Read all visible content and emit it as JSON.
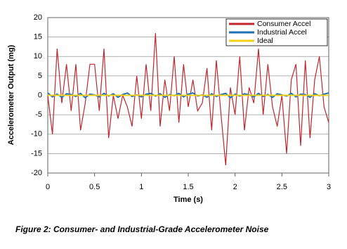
{
  "chart_data": {
    "type": "line",
    "caption": "Figure 2: Consumer- and Industrial-Grade Accelerometer Noise",
    "x_label": "Time (s)",
    "y_label": "Accelerometer Output (mg)",
    "x": [
      0,
      0.05,
      0.1,
      0.15,
      0.2,
      0.25,
      0.3,
      0.35,
      0.4,
      0.45,
      0.5,
      0.55,
      0.6,
      0.65,
      0.7,
      0.75,
      0.8,
      0.85,
      0.9,
      0.95,
      1,
      1.05,
      1.1,
      1.15,
      1.2,
      1.25,
      1.3,
      1.35,
      1.4,
      1.45,
      1.5,
      1.55,
      1.6,
      1.65,
      1.7,
      1.75,
      1.8,
      1.85,
      1.9,
      1.95,
      2,
      2.05,
      2.1,
      2.15,
      2.2,
      2.25,
      2.3,
      2.35,
      2.4,
      2.45,
      2.5,
      2.55,
      2.6,
      2.65,
      2.7,
      2.75,
      2.8,
      2.85,
      2.9,
      2.95,
      3
    ],
    "series": [
      {
        "name": "Consumer Accel",
        "color": "#c0272d",
        "values": [
          0,
          -10,
          12,
          -2,
          8,
          -4,
          8,
          -9,
          -2,
          8,
          8,
          -4,
          12,
          -11,
          0,
          -6,
          0,
          -3,
          -8,
          5,
          -6,
          8,
          -4,
          16,
          -8,
          4,
          -4,
          10,
          -7,
          8,
          -3,
          4,
          -4,
          -2,
          7,
          -9,
          9,
          -5,
          -18,
          2,
          -5,
          10,
          -9,
          2,
          -2,
          12,
          -5,
          8,
          -3,
          -8,
          0,
          -15,
          4,
          8,
          -13,
          9,
          -11,
          4,
          10,
          -3,
          -7
        ]
      },
      {
        "name": "Industrial Accel",
        "color": "#1f6fb4",
        "values": [
          0.6,
          -0.4,
          0.3,
          -0.5,
          0.4,
          0.2,
          -0.3,
          0.5,
          -0.6,
          0.3,
          0.1,
          -0.4,
          0.5,
          -0.2,
          0.4,
          -0.5,
          0.2,
          0.6,
          -0.3,
          0.1,
          -0.4,
          0.3,
          0.5,
          -0.2,
          0.4,
          -0.5,
          0.2,
          -0.1,
          0.5,
          -0.4,
          0.3,
          0.6,
          -0.2,
          0.1,
          -0.5,
          0.4,
          -0.3,
          0.2,
          0.5,
          -0.6,
          0.3,
          -0.2,
          0.4,
          0.1,
          -0.4,
          0.5,
          -0.3,
          0.2,
          -0.5,
          0.4,
          0.1,
          -0.2,
          0.5,
          -0.4,
          0.3,
          0.2,
          -0.5,
          0.4,
          -0.1,
          0.3,
          0.6
        ]
      },
      {
        "name": "Ideal",
        "color": "#f2d21b",
        "values": [
          0,
          0,
          0,
          0,
          0,
          0,
          0,
          0,
          0,
          0,
          0,
          0,
          0,
          0,
          0,
          0,
          0,
          0,
          0,
          0,
          0,
          0,
          0,
          0,
          0,
          0,
          0,
          0,
          0,
          0,
          0,
          0,
          0,
          0,
          0,
          0,
          0,
          0,
          0,
          0,
          0,
          0,
          0,
          0,
          0,
          0,
          0,
          0,
          0,
          0,
          0,
          0,
          0,
          0,
          0,
          0,
          0,
          0,
          0,
          0,
          0
        ]
      }
    ],
    "xlim": [
      0,
      3
    ],
    "xticks": [
      0,
      0.5,
      1,
      1.5,
      2,
      2.5,
      3
    ],
    "ylim": [
      -20,
      20
    ],
    "yticks": [
      -20,
      -15,
      -10,
      -5,
      0,
      5,
      10,
      15,
      20
    ],
    "grid": true,
    "legend": "top-right"
  }
}
